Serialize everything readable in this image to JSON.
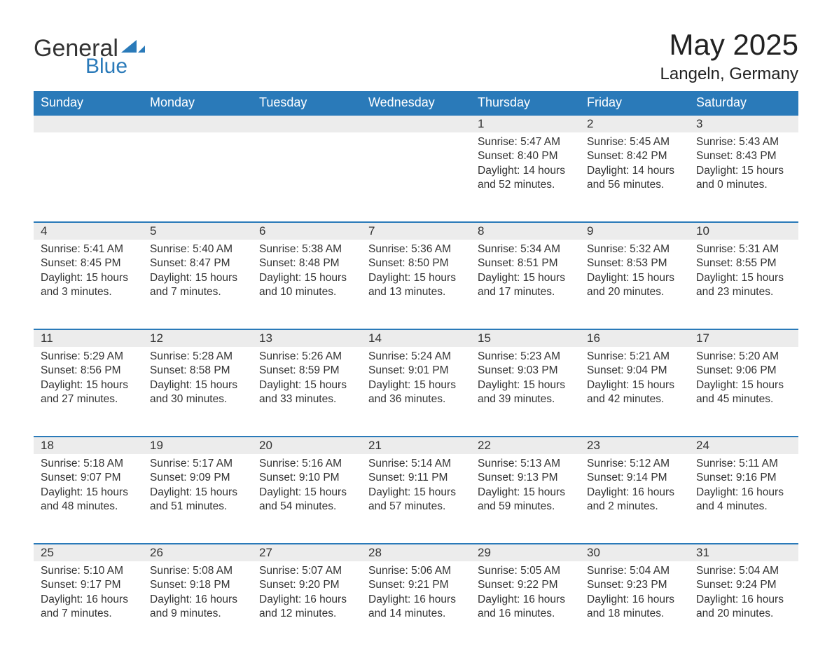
{
  "logo": {
    "text1": "General",
    "text2": "Blue",
    "tri_color": "#2a7ab9"
  },
  "title": "May 2025",
  "location": "Langeln, Germany",
  "colors": {
    "header_bg": "#2a7ab9",
    "header_fg": "#ffffff",
    "daynum_bg": "#ececec",
    "row_border": "#2a7ab9",
    "text": "#333333",
    "page_bg": "#ffffff"
  },
  "typography": {
    "title_fontsize": 42,
    "location_fontsize": 24,
    "dayheader_fontsize": 18,
    "cell_fontsize": 15.5
  },
  "day_headers": [
    "Sunday",
    "Monday",
    "Tuesday",
    "Wednesday",
    "Thursday",
    "Friday",
    "Saturday"
  ],
  "weeks": [
    [
      null,
      null,
      null,
      null,
      {
        "n": "1",
        "sunrise": "5:47 AM",
        "sunset": "8:40 PM",
        "dl": "14 hours and 52 minutes."
      },
      {
        "n": "2",
        "sunrise": "5:45 AM",
        "sunset": "8:42 PM",
        "dl": "14 hours and 56 minutes."
      },
      {
        "n": "3",
        "sunrise": "5:43 AM",
        "sunset": "8:43 PM",
        "dl": "15 hours and 0 minutes."
      }
    ],
    [
      {
        "n": "4",
        "sunrise": "5:41 AM",
        "sunset": "8:45 PM",
        "dl": "15 hours and 3 minutes."
      },
      {
        "n": "5",
        "sunrise": "5:40 AM",
        "sunset": "8:47 PM",
        "dl": "15 hours and 7 minutes."
      },
      {
        "n": "6",
        "sunrise": "5:38 AM",
        "sunset": "8:48 PM",
        "dl": "15 hours and 10 minutes."
      },
      {
        "n": "7",
        "sunrise": "5:36 AM",
        "sunset": "8:50 PM",
        "dl": "15 hours and 13 minutes."
      },
      {
        "n": "8",
        "sunrise": "5:34 AM",
        "sunset": "8:51 PM",
        "dl": "15 hours and 17 minutes."
      },
      {
        "n": "9",
        "sunrise": "5:32 AM",
        "sunset": "8:53 PM",
        "dl": "15 hours and 20 minutes."
      },
      {
        "n": "10",
        "sunrise": "5:31 AM",
        "sunset": "8:55 PM",
        "dl": "15 hours and 23 minutes."
      }
    ],
    [
      {
        "n": "11",
        "sunrise": "5:29 AM",
        "sunset": "8:56 PM",
        "dl": "15 hours and 27 minutes."
      },
      {
        "n": "12",
        "sunrise": "5:28 AM",
        "sunset": "8:58 PM",
        "dl": "15 hours and 30 minutes."
      },
      {
        "n": "13",
        "sunrise": "5:26 AM",
        "sunset": "8:59 PM",
        "dl": "15 hours and 33 minutes."
      },
      {
        "n": "14",
        "sunrise": "5:24 AM",
        "sunset": "9:01 PM",
        "dl": "15 hours and 36 minutes."
      },
      {
        "n": "15",
        "sunrise": "5:23 AM",
        "sunset": "9:03 PM",
        "dl": "15 hours and 39 minutes."
      },
      {
        "n": "16",
        "sunrise": "5:21 AM",
        "sunset": "9:04 PM",
        "dl": "15 hours and 42 minutes."
      },
      {
        "n": "17",
        "sunrise": "5:20 AM",
        "sunset": "9:06 PM",
        "dl": "15 hours and 45 minutes."
      }
    ],
    [
      {
        "n": "18",
        "sunrise": "5:18 AM",
        "sunset": "9:07 PM",
        "dl": "15 hours and 48 minutes."
      },
      {
        "n": "19",
        "sunrise": "5:17 AM",
        "sunset": "9:09 PM",
        "dl": "15 hours and 51 minutes."
      },
      {
        "n": "20",
        "sunrise": "5:16 AM",
        "sunset": "9:10 PM",
        "dl": "15 hours and 54 minutes."
      },
      {
        "n": "21",
        "sunrise": "5:14 AM",
        "sunset": "9:11 PM",
        "dl": "15 hours and 57 minutes."
      },
      {
        "n": "22",
        "sunrise": "5:13 AM",
        "sunset": "9:13 PM",
        "dl": "15 hours and 59 minutes."
      },
      {
        "n": "23",
        "sunrise": "5:12 AM",
        "sunset": "9:14 PM",
        "dl": "16 hours and 2 minutes."
      },
      {
        "n": "24",
        "sunrise": "5:11 AM",
        "sunset": "9:16 PM",
        "dl": "16 hours and 4 minutes."
      }
    ],
    [
      {
        "n": "25",
        "sunrise": "5:10 AM",
        "sunset": "9:17 PM",
        "dl": "16 hours and 7 minutes."
      },
      {
        "n": "26",
        "sunrise": "5:08 AM",
        "sunset": "9:18 PM",
        "dl": "16 hours and 9 minutes."
      },
      {
        "n": "27",
        "sunrise": "5:07 AM",
        "sunset": "9:20 PM",
        "dl": "16 hours and 12 minutes."
      },
      {
        "n": "28",
        "sunrise": "5:06 AM",
        "sunset": "9:21 PM",
        "dl": "16 hours and 14 minutes."
      },
      {
        "n": "29",
        "sunrise": "5:05 AM",
        "sunset": "9:22 PM",
        "dl": "16 hours and 16 minutes."
      },
      {
        "n": "30",
        "sunrise": "5:04 AM",
        "sunset": "9:23 PM",
        "dl": "16 hours and 18 minutes."
      },
      {
        "n": "31",
        "sunrise": "5:04 AM",
        "sunset": "9:24 PM",
        "dl": "16 hours and 20 minutes."
      }
    ]
  ],
  "labels": {
    "sunrise": "Sunrise: ",
    "sunset": "Sunset: ",
    "daylight": "Daylight: "
  }
}
